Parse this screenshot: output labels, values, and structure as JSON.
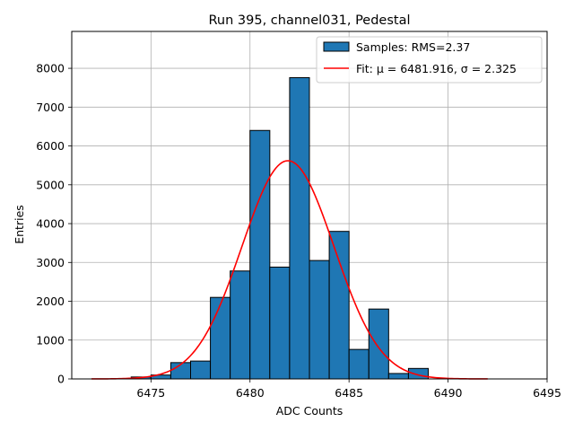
{
  "chart_data": {
    "type": "bar",
    "title": "Run 395, channel031, Pedestal",
    "xlabel": "ADC Counts",
    "ylabel": "Entries",
    "xlim": [
      6471,
      6495
    ],
    "ylim": [
      0,
      8950
    ],
    "x_ticks": [
      "6475",
      "6480",
      "6485",
      "6490",
      "6495"
    ],
    "y_ticks": [
      "0",
      "1000",
      "2000",
      "3000",
      "4000",
      "5000",
      "6000",
      "7000",
      "8000"
    ],
    "x_tick_values": [
      6475,
      6480,
      6485,
      6490,
      6495
    ],
    "y_tick_values": [
      0,
      1000,
      2000,
      3000,
      4000,
      5000,
      6000,
      7000,
      8000
    ],
    "grid": true,
    "legend_position": "top-right",
    "histogram": {
      "bin_width": 1,
      "bins": [
        {
          "x0": 6474,
          "count": 50
        },
        {
          "x0": 6475,
          "count": 100
        },
        {
          "x0": 6476,
          "count": 420
        },
        {
          "x0": 6477,
          "count": 460
        },
        {
          "x0": 6478,
          "count": 2100
        },
        {
          "x0": 6479,
          "count": 2780
        },
        {
          "x0": 6480,
          "count": 6400
        },
        {
          "x0": 6481,
          "count": 2880
        },
        {
          "x0": 6482,
          "count": 7760
        },
        {
          "x0": 6483,
          "count": 3050
        },
        {
          "x0": 6484,
          "count": 3800
        },
        {
          "x0": 6485,
          "count": 760
        },
        {
          "x0": 6486,
          "count": 1800
        },
        {
          "x0": 6487,
          "count": 140
        },
        {
          "x0": 6488,
          "count": 270
        }
      ]
    },
    "fit": {
      "mu": 6481.916,
      "sigma": 2.325,
      "amplitude": 5620,
      "x_range": [
        6472,
        6492
      ]
    },
    "series": [
      {
        "name": "Samples: RMS=2.37",
        "color": "#1f77b4"
      },
      {
        "name": "Fit: μ = 6481.916, σ = 2.325",
        "color": "#ff0000"
      }
    ]
  }
}
